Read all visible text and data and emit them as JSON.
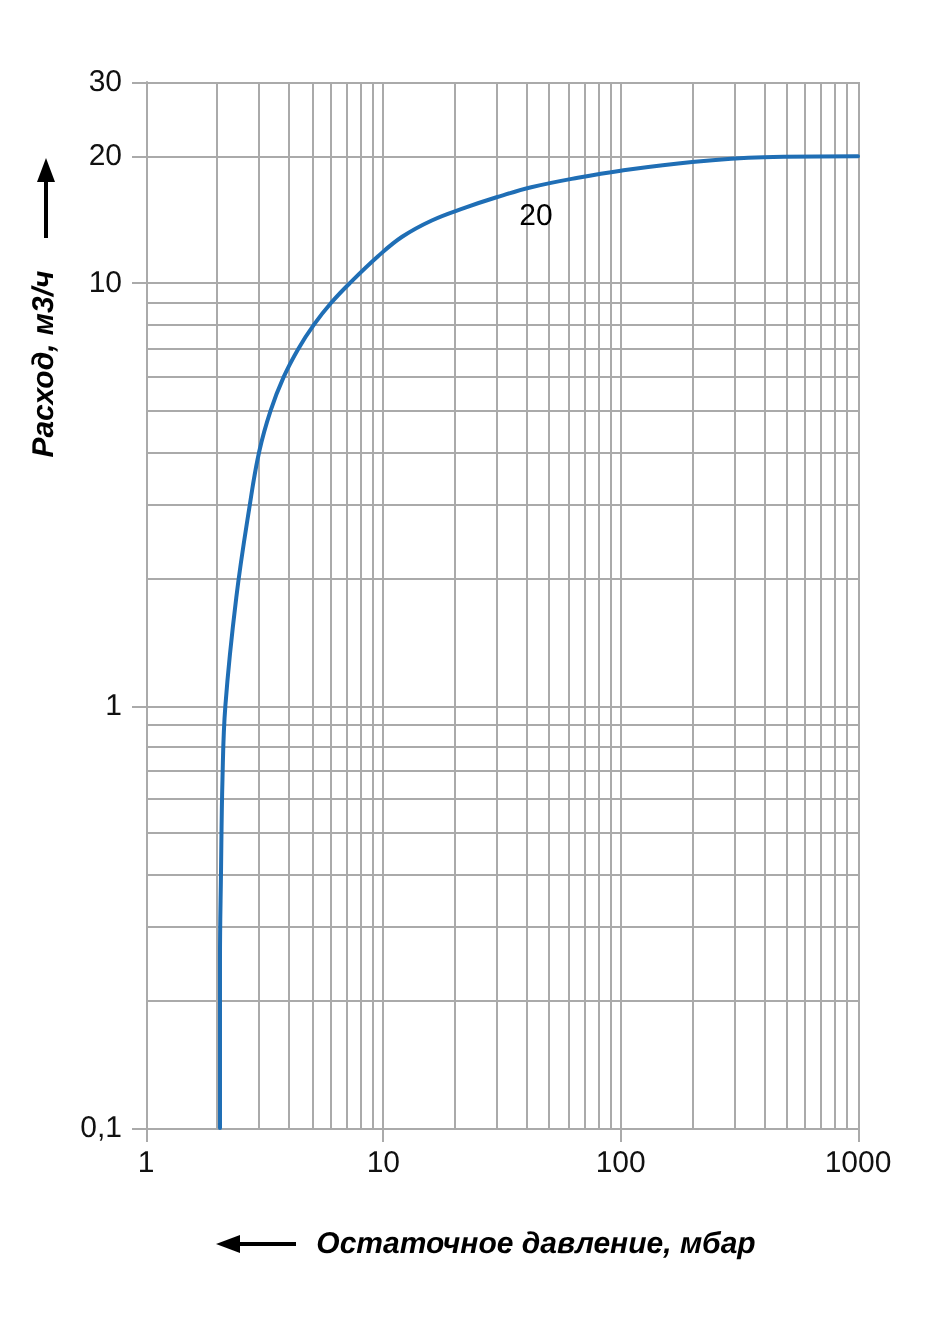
{
  "chart_data": {
    "type": "line",
    "xlabel": "Остаточное давление, мбар",
    "ylabel": "Расход, м3/ч",
    "series": [
      {
        "name": "20",
        "color": "#1f6eb5",
        "x": [
          2.05,
          2.05,
          2.07,
          2.1,
          2.16,
          2.4,
          2.74,
          3.0,
          3.35,
          3.8,
          4.38,
          5.11,
          6.03,
          7.2,
          9.5,
          12,
          16,
          22,
          30,
          42,
          66,
          100,
          200,
          400,
          1000
        ],
        "values": [
          0.1,
          0.25,
          0.4,
          0.67,
          1,
          1.8,
          3,
          4,
          5,
          6,
          7,
          8,
          9,
          10,
          11.6,
          12.9,
          14.1,
          15.1,
          16,
          16.9,
          17.8,
          18.5,
          19.4,
          19.9,
          20
        ]
      }
    ],
    "log": "xy",
    "xlim": [
      1,
      1000
    ],
    "ylim": [
      0.1,
      30
    ],
    "xticks": [
      1,
      10,
      100,
      1000
    ],
    "yticks": [
      {
        "value": 0.1,
        "label": "0,1"
      },
      1,
      10,
      20,
      30
    ],
    "grid": true
  }
}
